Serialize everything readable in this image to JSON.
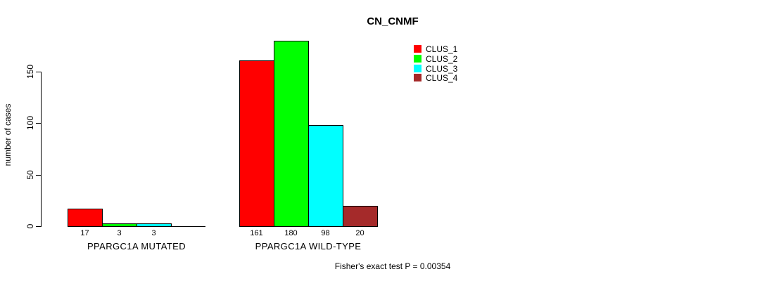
{
  "chart_data": {
    "type": "bar",
    "title": "CN_CNMF",
    "ylabel": "number of cases",
    "yticks": [
      0,
      50,
      100,
      150
    ],
    "ylim": [
      0,
      185
    ],
    "grid": false,
    "legend_position": "top-right",
    "series": [
      {
        "name": "CLUS_1",
        "color": "#ff0000"
      },
      {
        "name": "CLUS_2",
        "color": "#00ff00"
      },
      {
        "name": "CLUS_3",
        "color": "#00ffff"
      },
      {
        "name": "CLUS_4",
        "color": "#a52a2a"
      }
    ],
    "groups": [
      {
        "label": "PPARGC1A MUTATED",
        "values": [
          17,
          3,
          3,
          0
        ],
        "value_labels": [
          "17",
          "3",
          "3",
          ""
        ]
      },
      {
        "label": "PPARGC1A WILD-TYPE",
        "values": [
          161,
          180,
          98,
          20
        ],
        "value_labels": [
          "161",
          "180",
          "98",
          "20"
        ]
      }
    ],
    "annotation": "Fisher's exact test P = 0.00354"
  }
}
